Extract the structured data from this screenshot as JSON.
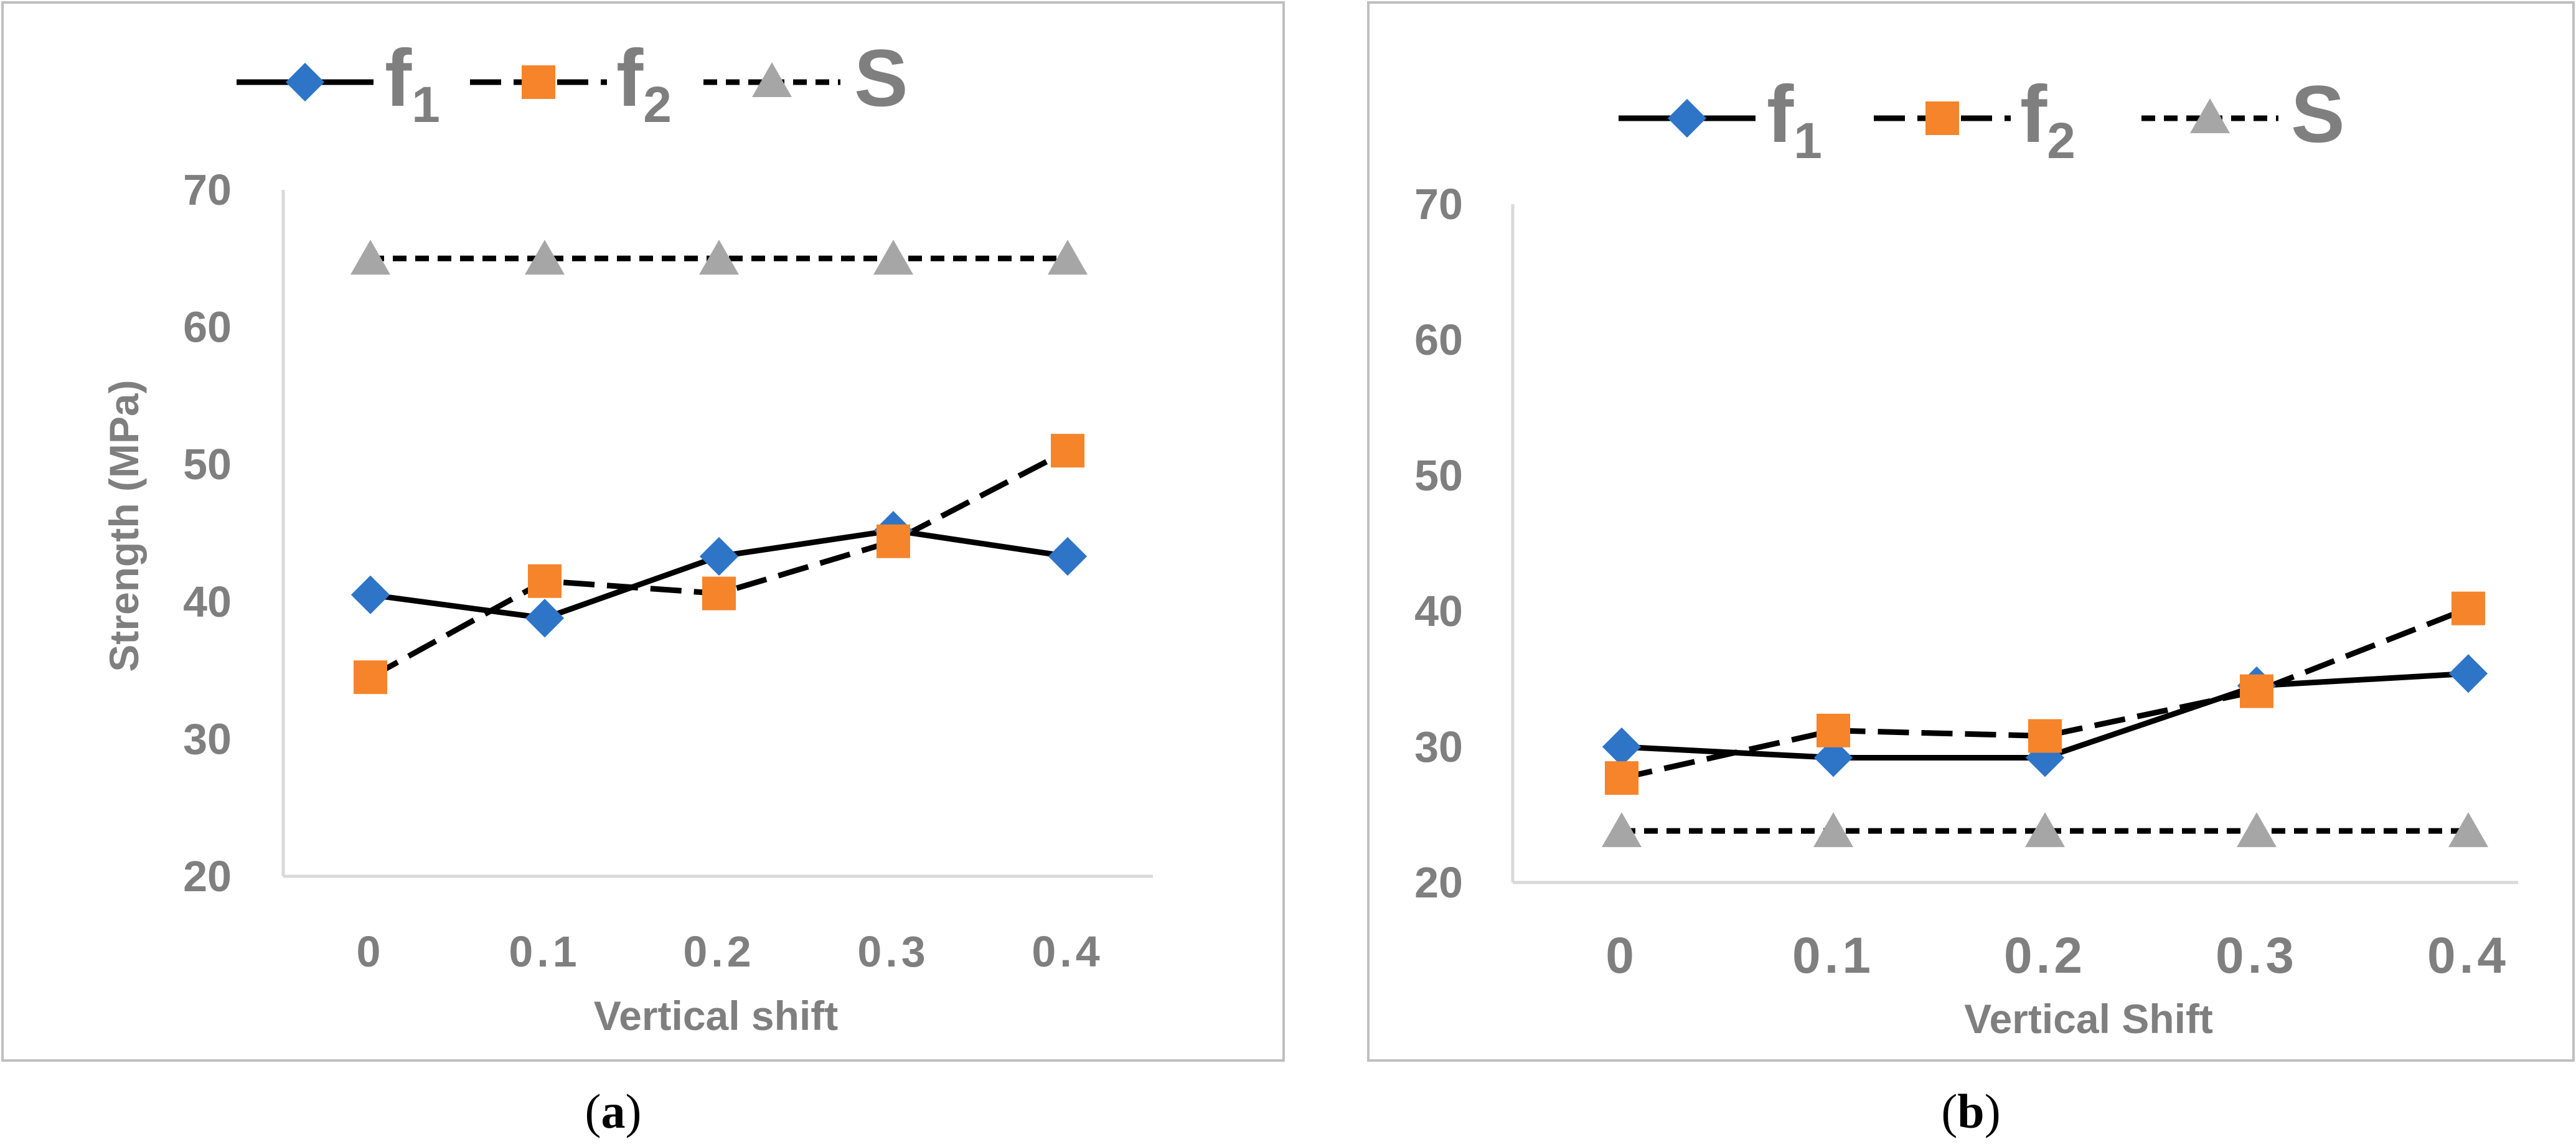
{
  "colors": {
    "f1_marker": "#2e75c8",
    "f2_marker": "#f5842a",
    "s_marker": "#a6a6a6",
    "line": "#000000",
    "text": "#7f7f7f",
    "axis": "#d9d9d9",
    "frame": "#bfbfbf"
  },
  "legend_labels": {
    "f1_main": "f",
    "f1_sub": "1",
    "f2_main": "f",
    "f2_sub": "2",
    "s_main": "S"
  },
  "panel_labels": {
    "a_open": "(",
    "a_letter": "a",
    "a_close": ")",
    "b_open": "(",
    "b_letter": "b",
    "b_close": ")"
  },
  "chart_data": [
    {
      "type": "line",
      "categories": [
        "0",
        "0.1",
        "0.2",
        "0.3",
        "0.4"
      ],
      "xlabel": "Vertical shift",
      "ylabel": "Strength (MPa)",
      "ylim": [
        20,
        70
      ],
      "yticks": [
        "20",
        "30",
        "40",
        "50",
        "60",
        "70"
      ],
      "grid": false,
      "legend": "top",
      "series": [
        {
          "name": "f1",
          "marker": "diamond",
          "dash": "solid",
          "values": [
            40.5,
            38.8,
            43.3,
            45.2,
            43.3
          ]
        },
        {
          "name": "f2",
          "marker": "square",
          "dash": "long-dash",
          "values": [
            34.5,
            41.5,
            40.6,
            44.4,
            51.0
          ]
        },
        {
          "name": "S",
          "marker": "triangle",
          "dash": "short-dash",
          "values": [
            65,
            65,
            65,
            65,
            65
          ]
        }
      ]
    },
    {
      "type": "line",
      "categories": [
        "0",
        "0.1",
        "0.2",
        "0.3",
        "0.4"
      ],
      "xlabel": "Vertical Shift",
      "ylabel": "",
      "ylim": [
        20,
        70
      ],
      "yticks": [
        "20",
        "30",
        "40",
        "50",
        "60",
        "70"
      ],
      "grid": false,
      "legend": "top",
      "series": [
        {
          "name": "f1",
          "marker": "diamond",
          "dash": "solid",
          "values": [
            30.0,
            29.2,
            29.2,
            34.5,
            35.4
          ]
        },
        {
          "name": "f2",
          "marker": "square",
          "dash": "long-dash",
          "values": [
            27.7,
            31.2,
            30.8,
            34.1,
            40.2
          ]
        },
        {
          "name": "S",
          "marker": "triangle",
          "dash": "short-dash",
          "values": [
            23.8,
            23.8,
            23.8,
            23.8,
            23.8
          ]
        }
      ]
    }
  ]
}
